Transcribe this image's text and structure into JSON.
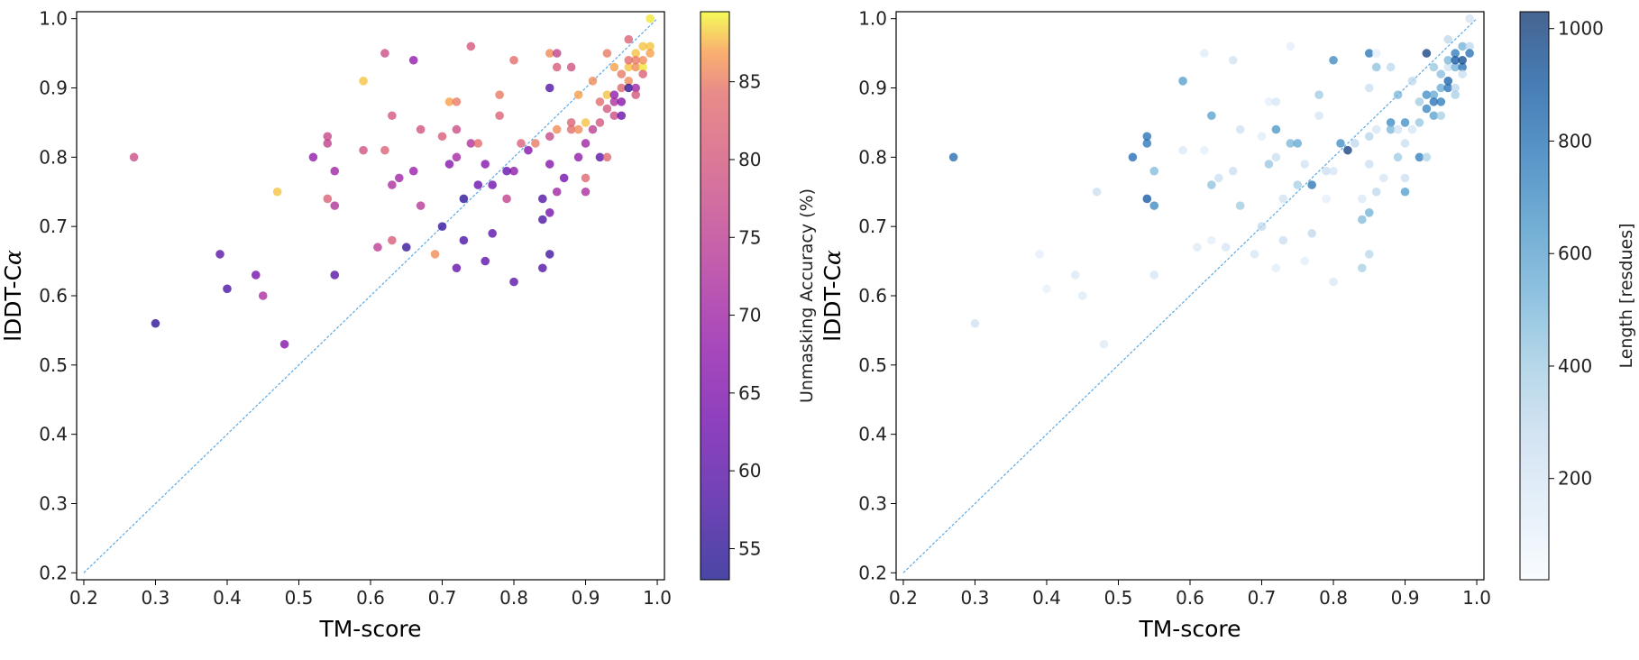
{
  "chart_data": [
    {
      "type": "scatter",
      "title": "",
      "xlabel": "TM-score",
      "ylabel": "lDDT-C",
      "ylabel_symbol": "α",
      "xlim": [
        0.19,
        1.01
      ],
      "ylim": [
        0.19,
        1.01
      ],
      "xticks": [
        "0.2",
        "0.3",
        "0.4",
        "0.5",
        "0.6",
        "0.7",
        "0.8",
        "0.9",
        "1.0"
      ],
      "yticks": [
        "0.2",
        "0.3",
        "0.4",
        "0.5",
        "0.6",
        "0.7",
        "0.8",
        "0.9",
        "1.0"
      ],
      "diagonal": true,
      "colorbar": {
        "label": "Unmasking Accuracy (%)",
        "colormap": "plasma",
        "alpha": 0.75,
        "range": [
          53,
          89.5
        ],
        "ticks": [
          "55",
          "60",
          "65",
          "70",
          "75",
          "80",
          "85"
        ]
      },
      "points": [
        [
          0.27,
          0.8,
          78
        ],
        [
          0.3,
          0.56,
          55
        ],
        [
          0.39,
          0.66,
          60
        ],
        [
          0.4,
          0.61,
          58
        ],
        [
          0.44,
          0.63,
          64
        ],
        [
          0.45,
          0.6,
          72
        ],
        [
          0.47,
          0.75,
          88
        ],
        [
          0.48,
          0.53,
          66
        ],
        [
          0.52,
          0.8,
          68
        ],
        [
          0.54,
          0.82,
          76
        ],
        [
          0.54,
          0.83,
          77
        ],
        [
          0.54,
          0.74,
          82
        ],
        [
          0.55,
          0.63,
          60
        ],
        [
          0.55,
          0.78,
          70
        ],
        [
          0.55,
          0.73,
          73
        ],
        [
          0.59,
          0.91,
          88
        ],
        [
          0.59,
          0.81,
          79
        ],
        [
          0.61,
          0.67,
          75
        ],
        [
          0.62,
          0.95,
          78
        ],
        [
          0.62,
          0.81,
          82
        ],
        [
          0.63,
          0.86,
          80
        ],
        [
          0.63,
          0.76,
          72
        ],
        [
          0.63,
          0.68,
          81
        ],
        [
          0.64,
          0.77,
          70
        ],
        [
          0.65,
          0.67,
          56
        ],
        [
          0.66,
          0.78,
          69
        ],
        [
          0.66,
          0.94,
          68
        ],
        [
          0.67,
          0.73,
          74
        ],
        [
          0.67,
          0.84,
          79
        ],
        [
          0.69,
          0.66,
          86
        ],
        [
          0.7,
          0.7,
          56
        ],
        [
          0.7,
          0.83,
          81
        ],
        [
          0.71,
          0.79,
          66
        ],
        [
          0.71,
          0.88,
          87
        ],
        [
          0.72,
          0.8,
          71
        ],
        [
          0.72,
          0.84,
          78
        ],
        [
          0.72,
          0.88,
          85
        ],
        [
          0.72,
          0.64,
          61
        ],
        [
          0.73,
          0.68,
          58
        ],
        [
          0.73,
          0.74,
          55
        ],
        [
          0.74,
          0.96,
          80
        ],
        [
          0.74,
          0.82,
          73
        ],
        [
          0.75,
          0.82,
          84
        ],
        [
          0.75,
          0.76,
          62
        ],
        [
          0.76,
          0.65,
          60
        ],
        [
          0.76,
          0.79,
          66
        ],
        [
          0.77,
          0.69,
          60
        ],
        [
          0.77,
          0.76,
          63
        ],
        [
          0.78,
          0.86,
          82
        ],
        [
          0.78,
          0.89,
          85
        ],
        [
          0.79,
          0.78,
          62
        ],
        [
          0.79,
          0.74,
          76
        ],
        [
          0.8,
          0.78,
          67
        ],
        [
          0.8,
          0.94,
          84
        ],
        [
          0.8,
          0.62,
          60
        ],
        [
          0.81,
          0.82,
          82
        ],
        [
          0.82,
          0.81,
          66
        ],
        [
          0.83,
          0.82,
          85
        ],
        [
          0.84,
          0.71,
          58
        ],
        [
          0.84,
          0.74,
          59
        ],
        [
          0.84,
          0.64,
          59
        ],
        [
          0.85,
          0.95,
          86
        ],
        [
          0.85,
          0.83,
          77
        ],
        [
          0.85,
          0.9,
          59
        ],
        [
          0.85,
          0.72,
          64
        ],
        [
          0.85,
          0.66,
          57
        ],
        [
          0.85,
          0.79,
          66
        ],
        [
          0.86,
          0.93,
          81
        ],
        [
          0.86,
          0.95,
          76
        ],
        [
          0.86,
          0.75,
          70
        ],
        [
          0.86,
          0.84,
          86
        ],
        [
          0.87,
          0.77,
          64
        ],
        [
          0.88,
          0.93,
          79
        ],
        [
          0.88,
          0.85,
          82
        ],
        [
          0.88,
          0.84,
          84
        ],
        [
          0.89,
          0.8,
          68
        ],
        [
          0.89,
          0.89,
          87
        ],
        [
          0.89,
          0.84,
          86
        ],
        [
          0.9,
          0.85,
          88
        ],
        [
          0.9,
          0.82,
          70
        ],
        [
          0.9,
          0.77,
          83
        ],
        [
          0.9,
          0.75,
          72
        ],
        [
          0.91,
          0.91,
          86
        ],
        [
          0.91,
          0.84,
          75
        ],
        [
          0.92,
          0.85,
          80
        ],
        [
          0.92,
          0.8,
          60
        ],
        [
          0.92,
          0.88,
          84
        ],
        [
          0.93,
          0.95,
          85
        ],
        [
          0.93,
          0.89,
          88
        ],
        [
          0.93,
          0.87,
          80
        ],
        [
          0.93,
          0.8,
          83
        ],
        [
          0.94,
          0.89,
          68
        ],
        [
          0.94,
          0.88,
          72
        ],
        [
          0.94,
          0.86,
          78
        ],
        [
          0.94,
          0.93,
          87
        ],
        [
          0.95,
          0.88,
          66
        ],
        [
          0.95,
          0.86,
          62
        ],
        [
          0.95,
          0.92,
          85
        ],
        [
          0.95,
          0.9,
          83
        ],
        [
          0.96,
          0.97,
          82
        ],
        [
          0.96,
          0.93,
          88
        ],
        [
          0.96,
          0.94,
          84
        ],
        [
          0.96,
          0.91,
          86
        ],
        [
          0.96,
          0.9,
          55
        ],
        [
          0.97,
          0.93,
          86
        ],
        [
          0.97,
          0.9,
          70
        ],
        [
          0.97,
          0.89,
          80
        ],
        [
          0.97,
          0.95,
          88
        ],
        [
          0.97,
          0.94,
          85
        ],
        [
          0.98,
          0.93,
          89
        ],
        [
          0.98,
          0.96,
          88
        ],
        [
          0.98,
          0.94,
          86
        ],
        [
          0.99,
          1.0,
          89
        ],
        [
          0.99,
          0.96,
          88
        ],
        [
          0.99,
          0.95,
          87
        ],
        [
          0.98,
          0.92,
          82
        ]
      ]
    },
    {
      "type": "scatter",
      "title": "",
      "xlabel": "TM-score",
      "ylabel": "lDDT-C",
      "ylabel_symbol": "α",
      "xlim": [
        0.19,
        1.01
      ],
      "ylim": [
        0.19,
        1.01
      ],
      "xticks": [
        "0.2",
        "0.3",
        "0.4",
        "0.5",
        "0.6",
        "0.7",
        "0.8",
        "0.9",
        "1.0"
      ],
      "yticks": [
        "0.2",
        "0.3",
        "0.4",
        "0.5",
        "0.6",
        "0.7",
        "0.8",
        "0.9",
        "1.0"
      ],
      "diagonal": true,
      "colorbar": {
        "label": "Length [resdues]",
        "colormap": "blues",
        "alpha": 0.75,
        "range": [
          20,
          1030
        ],
        "ticks": [
          "200",
          "400",
          "600",
          "800",
          "1000"
        ]
      },
      "points": [
        [
          0.27,
          0.8,
          820
        ],
        [
          0.3,
          0.56,
          230
        ],
        [
          0.39,
          0.66,
          130
        ],
        [
          0.4,
          0.61,
          110
        ],
        [
          0.44,
          0.63,
          180
        ],
        [
          0.45,
          0.6,
          160
        ],
        [
          0.47,
          0.75,
          250
        ],
        [
          0.48,
          0.53,
          160
        ],
        [
          0.52,
          0.8,
          820
        ],
        [
          0.54,
          0.82,
          780
        ],
        [
          0.54,
          0.83,
          800
        ],
        [
          0.54,
          0.74,
          900
        ],
        [
          0.55,
          0.63,
          200
        ],
        [
          0.55,
          0.78,
          480
        ],
        [
          0.55,
          0.73,
          700
        ],
        [
          0.59,
          0.91,
          620
        ],
        [
          0.59,
          0.81,
          170
        ],
        [
          0.61,
          0.67,
          160
        ],
        [
          0.62,
          0.95,
          150
        ],
        [
          0.62,
          0.81,
          120
        ],
        [
          0.63,
          0.86,
          600
        ],
        [
          0.63,
          0.76,
          450
        ],
        [
          0.63,
          0.68,
          120
        ],
        [
          0.64,
          0.77,
          250
        ],
        [
          0.65,
          0.67,
          200
        ],
        [
          0.66,
          0.78,
          250
        ],
        [
          0.66,
          0.94,
          220
        ],
        [
          0.67,
          0.73,
          400
        ],
        [
          0.67,
          0.84,
          230
        ],
        [
          0.69,
          0.66,
          200
        ],
        [
          0.7,
          0.7,
          300
        ],
        [
          0.7,
          0.83,
          140
        ],
        [
          0.71,
          0.79,
          420
        ],
        [
          0.71,
          0.88,
          120
        ],
        [
          0.72,
          0.8,
          260
        ],
        [
          0.72,
          0.84,
          650
        ],
        [
          0.72,
          0.88,
          200
        ],
        [
          0.72,
          0.64,
          140
        ],
        [
          0.73,
          0.68,
          250
        ],
        [
          0.73,
          0.74,
          220
        ],
        [
          0.74,
          0.96,
          120
        ],
        [
          0.74,
          0.82,
          500
        ],
        [
          0.75,
          0.82,
          570
        ],
        [
          0.75,
          0.76,
          380
        ],
        [
          0.76,
          0.65,
          130
        ],
        [
          0.76,
          0.79,
          220
        ],
        [
          0.77,
          0.69,
          300
        ],
        [
          0.77,
          0.76,
          780
        ],
        [
          0.78,
          0.86,
          200
        ],
        [
          0.78,
          0.89,
          400
        ],
        [
          0.79,
          0.78,
          260
        ],
        [
          0.79,
          0.74,
          120
        ],
        [
          0.8,
          0.78,
          200
        ],
        [
          0.8,
          0.94,
          700
        ],
        [
          0.8,
          0.62,
          180
        ],
        [
          0.81,
          0.82,
          680
        ],
        [
          0.82,
          0.81,
          1000
        ],
        [
          0.83,
          0.82,
          300
        ],
        [
          0.84,
          0.71,
          480
        ],
        [
          0.84,
          0.74,
          180
        ],
        [
          0.84,
          0.64,
          380
        ],
        [
          0.85,
          0.95,
          780
        ],
        [
          0.85,
          0.83,
          330
        ],
        [
          0.85,
          0.9,
          250
        ],
        [
          0.85,
          0.72,
          520
        ],
        [
          0.85,
          0.66,
          320
        ],
        [
          0.85,
          0.79,
          250
        ],
        [
          0.86,
          0.93,
          450
        ],
        [
          0.86,
          0.95,
          120
        ],
        [
          0.86,
          0.75,
          300
        ],
        [
          0.86,
          0.84,
          200
        ],
        [
          0.87,
          0.77,
          200
        ],
        [
          0.88,
          0.93,
          300
        ],
        [
          0.88,
          0.85,
          700
        ],
        [
          0.88,
          0.84,
          500
        ],
        [
          0.89,
          0.8,
          400
        ],
        [
          0.89,
          0.89,
          500
        ],
        [
          0.89,
          0.84,
          220
        ],
        [
          0.9,
          0.85,
          680
        ],
        [
          0.9,
          0.82,
          260
        ],
        [
          0.9,
          0.77,
          240
        ],
        [
          0.9,
          0.75,
          620
        ],
        [
          0.91,
          0.91,
          300
        ],
        [
          0.91,
          0.84,
          200
        ],
        [
          0.92,
          0.85,
          420
        ],
        [
          0.92,
          0.8,
          750
        ],
        [
          0.92,
          0.88,
          400
        ],
        [
          0.93,
          0.95,
          1000
        ],
        [
          0.93,
          0.89,
          680
        ],
        [
          0.93,
          0.87,
          720
        ],
        [
          0.93,
          0.8,
          350
        ],
        [
          0.94,
          0.89,
          560
        ],
        [
          0.94,
          0.88,
          800
        ],
        [
          0.94,
          0.86,
          600
        ],
        [
          0.94,
          0.93,
          420
        ],
        [
          0.95,
          0.88,
          760
        ],
        [
          0.95,
          0.86,
          380
        ],
        [
          0.95,
          0.92,
          460
        ],
        [
          0.95,
          0.9,
          550
        ],
        [
          0.96,
          0.97,
          300
        ],
        [
          0.96,
          0.93,
          220
        ],
        [
          0.96,
          0.94,
          500
        ],
        [
          0.96,
          0.91,
          860
        ],
        [
          0.96,
          0.9,
          800
        ],
        [
          0.97,
          0.93,
          520
        ],
        [
          0.97,
          0.9,
          300
        ],
        [
          0.97,
          0.89,
          380
        ],
        [
          0.97,
          0.95,
          760
        ],
        [
          0.97,
          0.94,
          900
        ],
        [
          0.98,
          0.93,
          800
        ],
        [
          0.98,
          0.96,
          520
        ],
        [
          0.98,
          0.94,
          950
        ],
        [
          0.99,
          1.0,
          220
        ],
        [
          0.99,
          0.96,
          300
        ],
        [
          0.99,
          0.95,
          800
        ],
        [
          0.98,
          0.92,
          260
        ]
      ]
    }
  ]
}
